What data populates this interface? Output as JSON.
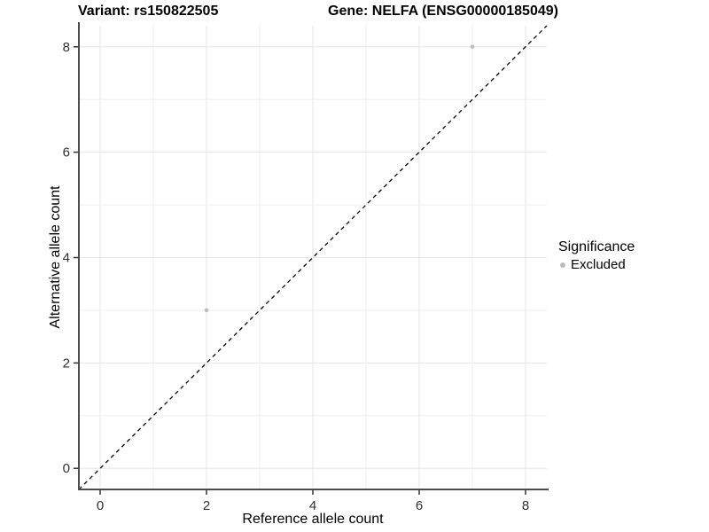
{
  "chart_data": {
    "type": "scatter",
    "title_left": "Variant: rs150822505",
    "title_right": "Gene: NELFA (ENSG00000185049)",
    "xlabel": "Reference allele count",
    "ylabel": "Alternative allele count",
    "xlim": [
      -0.4,
      8.4
    ],
    "ylim": [
      -0.4,
      8.4
    ],
    "x_ticks": [
      0,
      2,
      4,
      6,
      8
    ],
    "y_ticks": [
      0,
      2,
      4,
      6,
      8
    ],
    "gridlines_at": [
      0,
      1,
      2,
      3,
      4,
      5,
      6,
      7,
      8
    ],
    "grid": true,
    "points": [
      {
        "x": 2,
        "y": 3,
        "significance": "Excluded"
      },
      {
        "x": 7,
        "y": 8,
        "significance": "Excluded"
      }
    ],
    "abline": {
      "slope": 1,
      "intercept": 0,
      "style": "dashed"
    },
    "legend": {
      "title": "Significance",
      "position": "right",
      "items": [
        {
          "label": "Excluded",
          "color": "#bdbdbd"
        }
      ]
    },
    "colors": {
      "point": "#bdbdbd",
      "grid_major": "#e6e6e6",
      "grid_minor": "#efefef",
      "axis_line": "#4d4d4d",
      "tick_mark": "#333333",
      "tick_text": "#303030",
      "abline": "#000000",
      "background": "#ffffff"
    }
  }
}
